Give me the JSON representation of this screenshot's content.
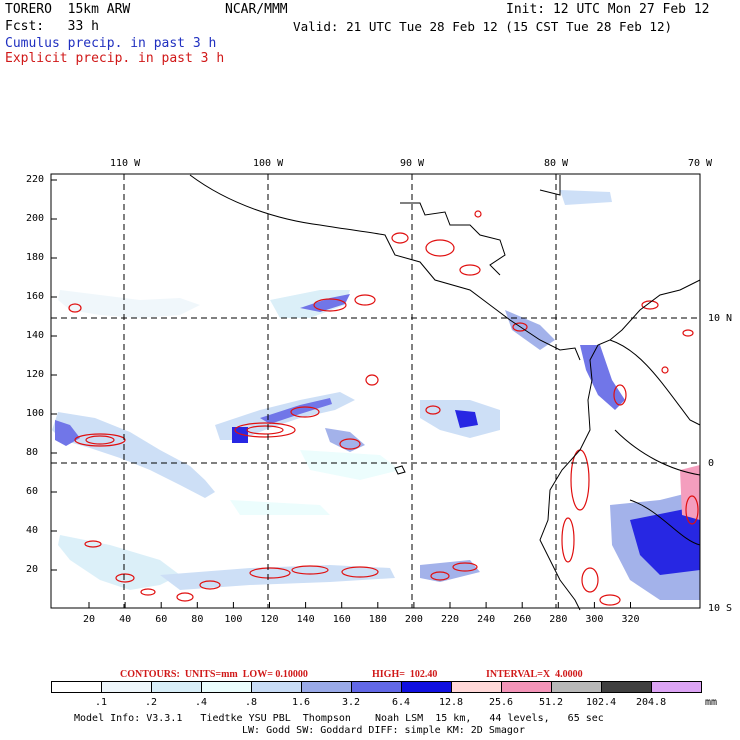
{
  "header": {
    "model": "TORERO  15km ARW",
    "org": "NCAR/MMM",
    "init": "Init: 12 UTC Mon 27 Feb 12",
    "fcst": "Fcst:   33 h",
    "valid": "Valid: 21 UTC Tue 28 Feb 12 (15 CST Tue 28 Feb 12)",
    "cumulus": "Cumulus precip. in past 3 h",
    "explicit": "Explicit precip. in past 3 h"
  },
  "axes": {
    "top_lon": [
      "110 W",
      "100 W",
      "90 W",
      "80 W",
      "70 W"
    ],
    "right_lat": [
      "10 N",
      "0",
      "10 S"
    ],
    "left_ticks": [
      "220",
      "200",
      "180",
      "160",
      "140",
      "120",
      "100",
      "80",
      "60",
      "40",
      "20"
    ],
    "bottom_ticks": [
      "20",
      "40",
      "60",
      "80",
      "100",
      "120",
      "140",
      "160",
      "180",
      "200",
      "220",
      "240",
      "260",
      "280",
      "300",
      "320"
    ]
  },
  "contours": {
    "label": "CONTOURS:  UNITS=mm  LOW= 0.10000",
    "high": "HIGH=  102.40",
    "interval": "INTERVAL=X  4.0000"
  },
  "scale": {
    "labels": [
      ".1",
      ".2",
      ".4",
      ".8",
      "1.6",
      "3.2",
      "6.4",
      "12.8",
      "25.6",
      "51.2",
      "102.4",
      "204.8"
    ],
    "unit": "mm",
    "colors": [
      "#ffffff",
      "#eef6fb",
      "#d8eef8",
      "#eafdfd",
      "#c8dcf6",
      "#9aaae8",
      "#6268e6",
      "#1010e0",
      "#ffd8d8",
      "#f394b8",
      "#b8b8b8",
      "#404040",
      "#dca4f4"
    ]
  },
  "footer": {
    "line1": "Model Info: V3.3.1   Tiedtke YSU PBL  Thompson    Noah LSM  15 km,   44 levels,   65 sec",
    "line2": "LW: Godd SW: Goddard DIFF: simple KM: 2D Smagor"
  }
}
